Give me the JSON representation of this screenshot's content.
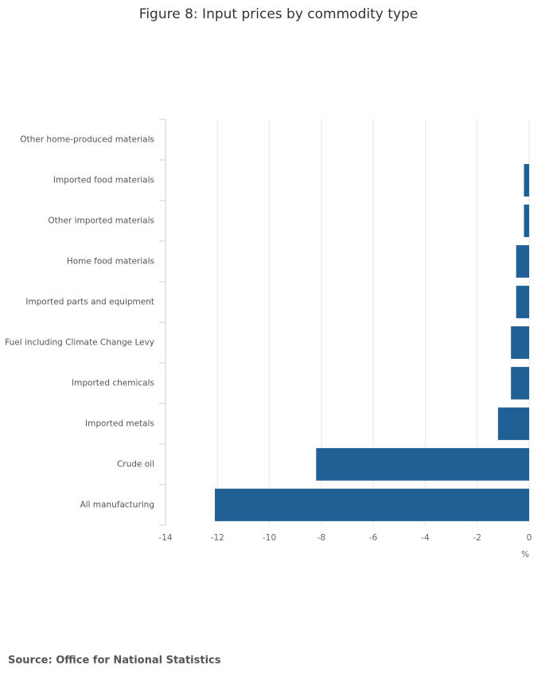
{
  "chart_data": {
    "type": "bar",
    "orientation": "horizontal",
    "title": "Figure 8: Input prices by commodity type",
    "categories": [
      "Other home-produced materials",
      "Imported food materials",
      "Other imported materials",
      "Home food materials",
      "Imported parts and equipment",
      "Fuel including Climate Change Levy",
      "Imported chemicals",
      "Imported metals",
      "Crude oil",
      "All manufacturing"
    ],
    "values": [
      0,
      -0.2,
      -0.2,
      -0.5,
      -0.5,
      -0.7,
      -0.7,
      -1.2,
      -8.2,
      -12.1
    ],
    "color": "#206095",
    "xlim": [
      -14,
      0
    ],
    "xticks": [
      -14,
      -12,
      -10,
      -8,
      -6,
      -4,
      -2,
      0
    ],
    "x_label": "%",
    "grid": true,
    "source": "Source:  Office for National Statistics"
  }
}
